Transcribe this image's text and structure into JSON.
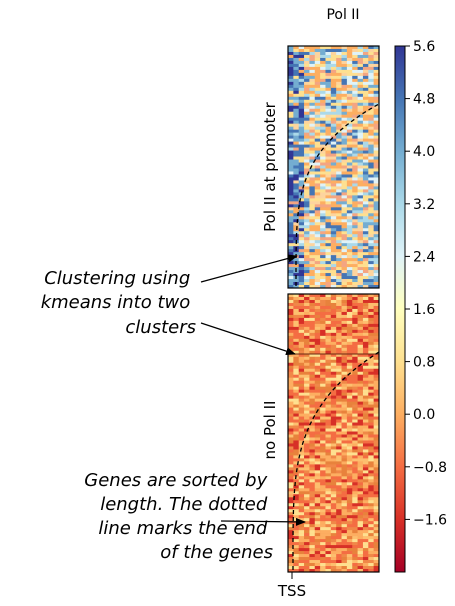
{
  "chart_data": {
    "type": "heatmap",
    "title": "Pol II",
    "clusters": [
      {
        "label": "Pol II at promoter",
        "palette": "high"
      },
      {
        "label": "no Pol II",
        "palette": "low"
      }
    ],
    "xticks": [
      "TSS"
    ],
    "colorbar": {
      "ticks": [
        5.6,
        4.8,
        4.0,
        3.2,
        2.4,
        1.6,
        0.8,
        0.0,
        -0.8,
        -1.6
      ],
      "tick_labels": [
        "5.6",
        "4.8",
        "4.0",
        "3.2",
        "2.4",
        "1.6",
        "0.8",
        "0.0",
        "−0.8",
        "−1.6"
      ],
      "range": [
        -2.4,
        5.6
      ],
      "colors": [
        "#a50026",
        "#d73027",
        "#f46d43",
        "#fdae61",
        "#fee090",
        "#ffffbf",
        "#e0f3f8",
        "#abd9e9",
        "#74add1",
        "#4575b4",
        "#313695"
      ]
    },
    "annotations": [
      {
        "lines": [
          "Clustering using",
          "kmeans into two",
          "clusters"
        ]
      },
      {
        "lines": [
          "Genes are sorted by",
          "length. The dotted",
          "line marks the end",
          "of the genes"
        ]
      }
    ]
  }
}
